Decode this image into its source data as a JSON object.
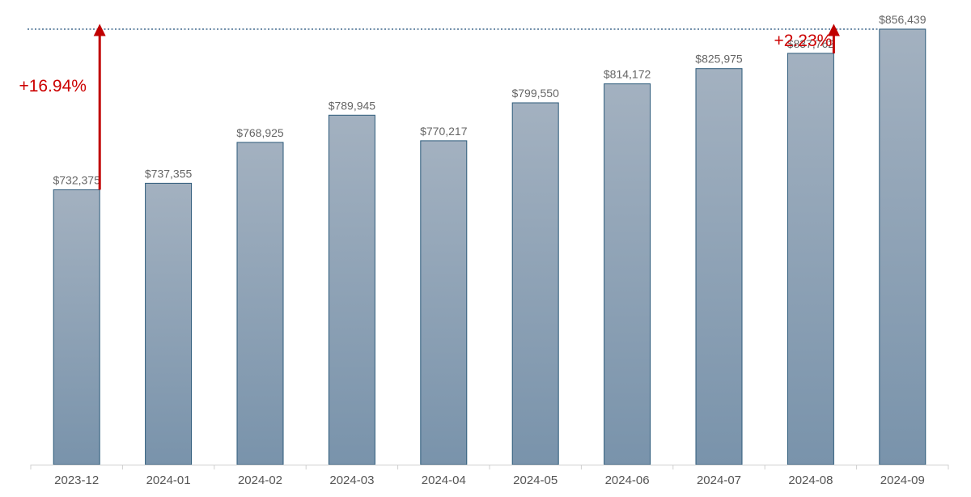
{
  "chart_data": {
    "type": "bar",
    "categories": [
      "2023-12",
      "2024-01",
      "2024-02",
      "2024-03",
      "2024-04",
      "2024-05",
      "2024-06",
      "2024-07",
      "2024-08",
      "2024-09"
    ],
    "values": [
      732375,
      737355,
      768925,
      789945,
      770217,
      799550,
      814172,
      825975,
      837762,
      856439
    ],
    "value_labels": [
      "$732,375",
      "$737,355",
      "$768,925",
      "$789,945",
      "$770,217",
      "$799,550",
      "$814,172",
      "$825,975",
      "$837,762",
      "$856,439"
    ],
    "title": "",
    "xlabel": "",
    "ylabel": "",
    "ylim": [
      520000,
      856439
    ],
    "grid": false,
    "legend": "none",
    "reference_line": {
      "value": 856439,
      "style": "dotted"
    },
    "annotations": [
      {
        "text": "+16.94%",
        "from_category": "2023-12",
        "to_value": 856439
      },
      {
        "text": "+2.23%",
        "from_category": "2024-08",
        "to_value": 856439
      }
    ],
    "colors": {
      "bar_top": "#a3b1c0",
      "bar_bottom": "#7993ab",
      "bar_stroke": "#2c5a7a",
      "reference_line": "#1f4e79",
      "annotation": "#c00000",
      "axis": "#d0d0d0"
    }
  }
}
